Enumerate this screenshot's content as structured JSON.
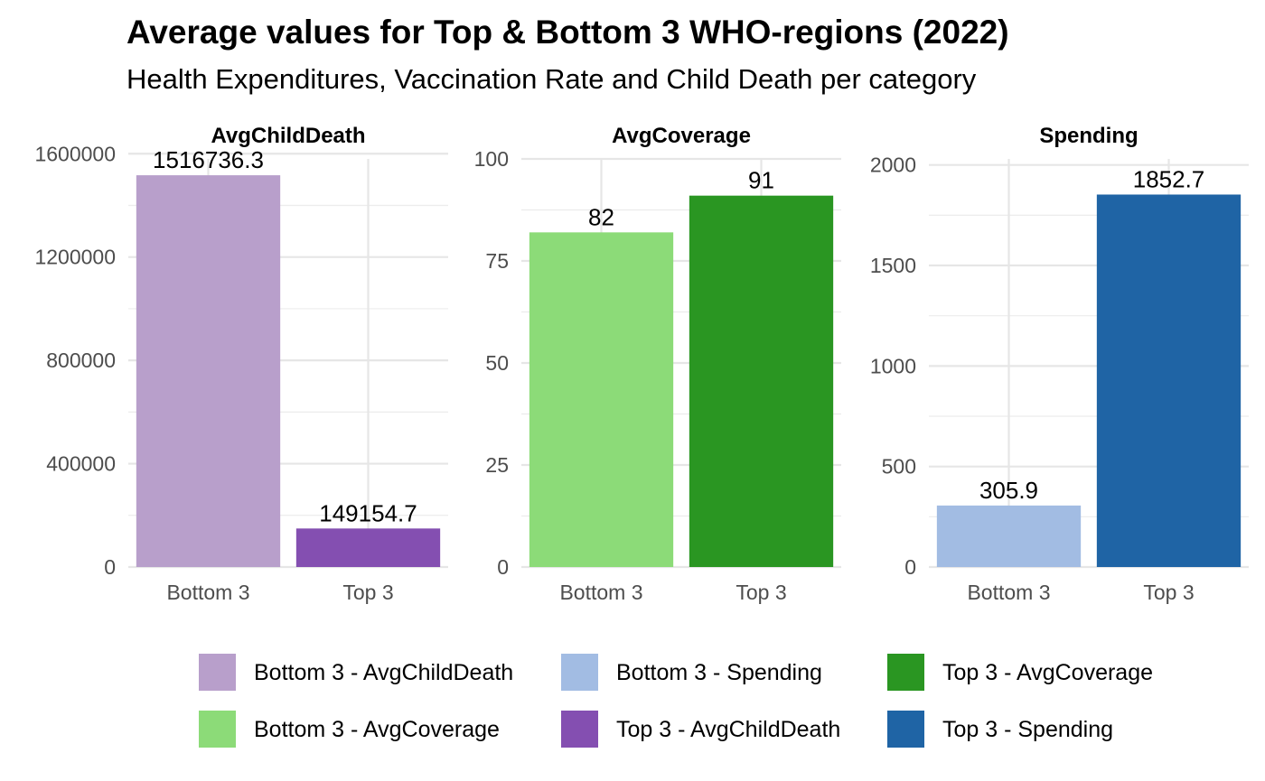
{
  "title": "Average values for Top & Bottom 3 WHO-regions (2022)",
  "subtitle": "Health Expenditures, Vaccination Rate and Child Death per category",
  "chart_data": [
    {
      "type": "bar",
      "facet": "AvgChildDeath",
      "categories": [
        "Bottom 3",
        "Top 3"
      ],
      "values": [
        1516736.3,
        149154.7
      ],
      "value_labels": [
        "1516736.3",
        "149154.7"
      ],
      "colors": [
        "#b89fcb",
        "#844fb1"
      ],
      "ylim": [
        0,
        1580000
      ],
      "yticks": [
        0,
        400000,
        800000,
        1200000,
        1600000
      ],
      "ytick_labels": [
        "0",
        "400000",
        "800000",
        "1200000",
        "1600000"
      ],
      "grid": true
    },
    {
      "type": "bar",
      "facet": "AvgCoverage",
      "categories": [
        "Bottom 3",
        "Top 3"
      ],
      "values": [
        82,
        91
      ],
      "value_labels": [
        "82",
        "91"
      ],
      "colors": [
        "#8cdb78",
        "#2a9622"
      ],
      "ylim": [
        0,
        100
      ],
      "yticks": [
        0,
        25,
        50,
        75,
        100
      ],
      "ytick_labels": [
        "0",
        "25",
        "50",
        "75",
        "100"
      ],
      "grid": true
    },
    {
      "type": "bar",
      "facet": "Spending",
      "categories": [
        "Bottom 3",
        "Top 3"
      ],
      "values": [
        305.9,
        1852.7
      ],
      "value_labels": [
        "305.9",
        "1852.7"
      ],
      "colors": [
        "#a2bce3",
        "#1f64a5"
      ],
      "ylim": [
        0,
        2030
      ],
      "yticks": [
        0,
        500,
        1000,
        1500,
        2000
      ],
      "ytick_labels": [
        "0",
        "500",
        "1000",
        "1500",
        "2000"
      ],
      "grid": true
    }
  ],
  "legend": {
    "position": "bottom",
    "items": [
      {
        "label": "Bottom 3 - AvgChildDeath",
        "color": "#b89fcb"
      },
      {
        "label": "Bottom 3 - Spending",
        "color": "#a2bce3"
      },
      {
        "label": "Top 3 - AvgCoverage",
        "color": "#2a9622"
      },
      {
        "label": "Bottom 3 - AvgCoverage",
        "color": "#8cdb78"
      },
      {
        "label": "Top 3 - AvgChildDeath",
        "color": "#844fb1"
      },
      {
        "label": "Top 3 - Spending",
        "color": "#1f64a5"
      }
    ]
  }
}
